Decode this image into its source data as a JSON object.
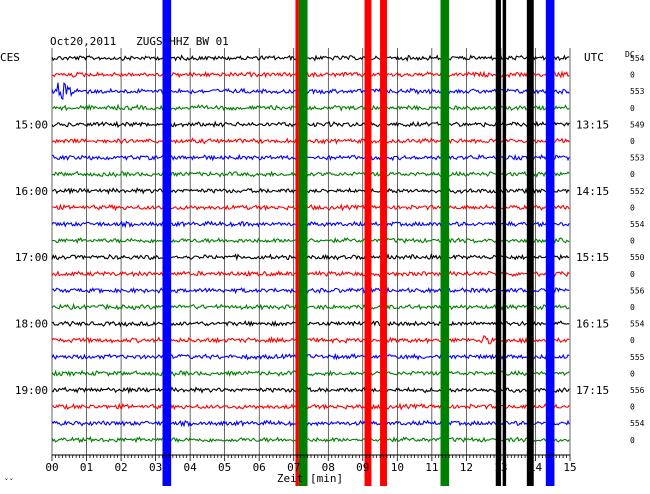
{
  "chart_data": {
    "type": "line",
    "title": "Oct20,2011   ZUGS HHZ BW 01",
    "left_timezone": "CES",
    "right_timezone": "UTC",
    "right_column_header": "DC",
    "xlabel": "Zeit [min]",
    "xlim": [
      0,
      15
    ],
    "x_tick_labels": [
      "00",
      "01",
      "02",
      "03",
      "04",
      "05",
      "06",
      "07",
      "08",
      "09",
      "10",
      "11",
      "12",
      "13",
      "14",
      "15"
    ],
    "trace_count": 24,
    "trace_interval_minutes": 15,
    "trace_colors": [
      "#000000",
      "#ff0000",
      "#0000ff",
      "#008000"
    ],
    "left_hour_labels": [
      {
        "trace": 4,
        "label": "15:00"
      },
      {
        "trace": 8,
        "label": "16:00"
      },
      {
        "trace": 12,
        "label": "17:00"
      },
      {
        "trace": 16,
        "label": "18:00"
      },
      {
        "trace": 20,
        "label": "19:00"
      }
    ],
    "right_time_labels": [
      {
        "trace": 4,
        "label": "13:15"
      },
      {
        "trace": 8,
        "label": "14:15"
      },
      {
        "trace": 12,
        "label": "15:15"
      },
      {
        "trace": 16,
        "label": "16:15"
      },
      {
        "trace": 20,
        "label": "17:15"
      }
    ],
    "dc_offsets": [
      "554",
      "0",
      "553",
      "0",
      "549",
      "0",
      "553",
      "0",
      "552",
      "0",
      "554",
      "0",
      "550",
      "0",
      "556",
      "0",
      "554",
      "0",
      "555",
      "0",
      "556",
      "0",
      "554",
      "0"
    ],
    "saturated_bands": [
      {
        "trace_from": 0,
        "trace_to": 23,
        "x_from": 3.2,
        "x_to": 3.45,
        "color": "#0000ff"
      },
      {
        "trace_from": 0,
        "trace_to": 23,
        "x_from": 7.05,
        "x_to": 7.15,
        "color": "#ff0000"
      },
      {
        "trace_from": 0,
        "trace_to": 23,
        "x_from": 7.15,
        "x_to": 7.4,
        "color": "#008000"
      },
      {
        "trace_from": 0,
        "trace_to": 23,
        "x_from": 9.05,
        "x_to": 9.25,
        "color": "#ff0000"
      },
      {
        "trace_from": 0,
        "trace_to": 23,
        "x_from": 9.5,
        "x_to": 9.7,
        "color": "#ff0000"
      },
      {
        "trace_from": 0,
        "trace_to": 23,
        "x_from": 11.25,
        "x_to": 11.5,
        "color": "#008000"
      },
      {
        "trace_from": 0,
        "trace_to": 23,
        "x_from": 12.85,
        "x_to": 13.0,
        "color": "#000000"
      },
      {
        "trace_from": 0,
        "trace_to": 23,
        "x_from": 13.05,
        "x_to": 13.15,
        "color": "#000000"
      },
      {
        "trace_from": 0,
        "trace_to": 23,
        "x_from": 13.75,
        "x_to": 13.95,
        "color": "#000000"
      },
      {
        "trace_from": 0,
        "trace_to": 23,
        "x_from": 14.3,
        "x_to": 14.55,
        "color": "#0000ff"
      }
    ],
    "events": [
      {
        "trace": 2,
        "x": 0.15,
        "duration": 1.0,
        "amplitude": 0.8,
        "color": "#0000ff"
      },
      {
        "trace": 1,
        "x": 14.4,
        "duration": 0.6,
        "amplitude": 0.5,
        "color": "#ff0000"
      },
      {
        "trace": 17,
        "x": 12.4,
        "duration": 0.6,
        "amplitude": 0.4,
        "color": "#ff0000"
      }
    ],
    "bottom_left_note": "ˇˇ",
    "grid": true
  }
}
